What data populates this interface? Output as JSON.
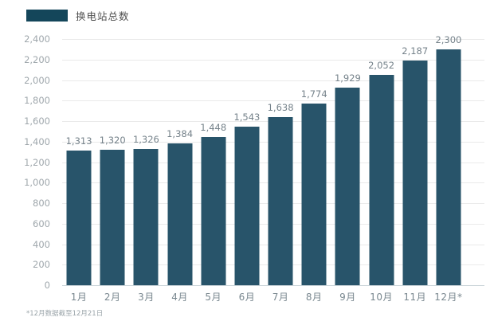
{
  "legend": {
    "label": "换电站总数"
  },
  "footnote": "*12月数据截至12月21日",
  "colors": {
    "bar": "#28546A",
    "legend_swatch": "#14465A",
    "grid": "#eaeaea",
    "baseline": "#c9d3d8",
    "y_tick_label": "#9fa7ac",
    "value_label": "#75828a",
    "month_label": "#79878f",
    "legend_text": "#4e4e4e",
    "footnote_text": "#9aa4a9",
    "background": "#ffffff"
  },
  "chart_data": {
    "type": "bar",
    "title": "换电站总数",
    "xlabel": "",
    "ylabel": "",
    "categories": [
      "1月",
      "2月",
      "3月",
      "4月",
      "5月",
      "6月",
      "7月",
      "8月",
      "9月",
      "10月",
      "11月",
      "12月*"
    ],
    "values": [
      1313,
      1320,
      1326,
      1384,
      1448,
      1543,
      1638,
      1774,
      1929,
      2052,
      2187,
      2300
    ],
    "value_labels": [
      "1,313",
      "1,320",
      "1,326",
      "1,384",
      "1,448",
      "1,543",
      "1,638",
      "1,774",
      "1,929",
      "2,052",
      "2,187",
      "2,300"
    ],
    "y_ticks": [
      0,
      200,
      400,
      600,
      800,
      1000,
      1200,
      1400,
      1600,
      1800,
      2000,
      2200,
      2400
    ],
    "y_tick_labels": [
      "0",
      "200",
      "400",
      "600",
      "800",
      "1,000",
      "1,200",
      "1,400",
      "1,600",
      "1,800",
      "2,000",
      "2,200",
      "2,400"
    ],
    "ylim": [
      0,
      2400
    ],
    "grid": "horizontal",
    "legend_position": "top-left",
    "annotation": "*12月数据截至12月21日"
  }
}
